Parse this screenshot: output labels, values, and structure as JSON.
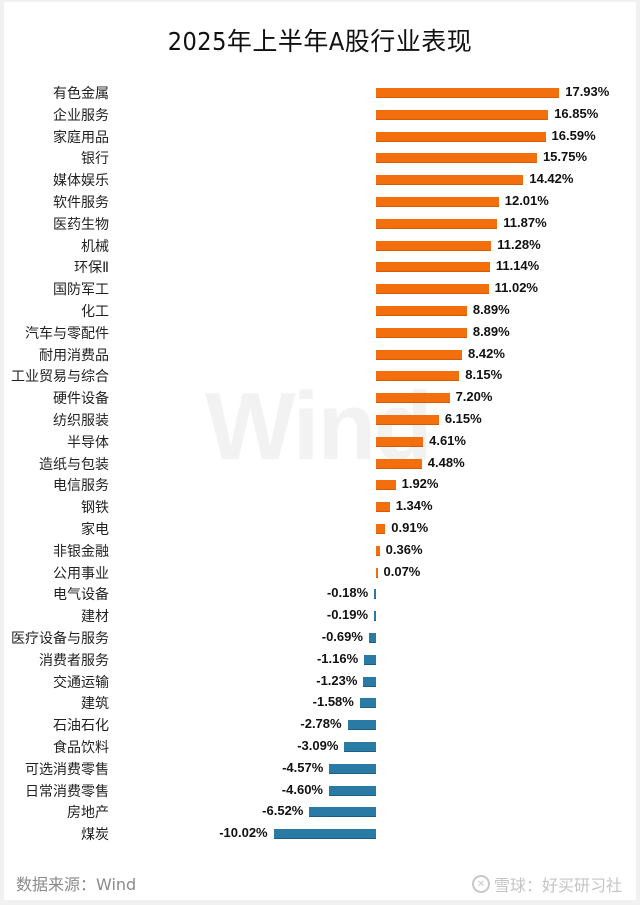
{
  "header": {
    "title": "2025年上半年A股行业表现"
  },
  "watermark": "Wind",
  "footer": {
    "source": "数据来源：Wind",
    "brand": "雪球：好买研习社",
    "brand_icon": "snowball-logo-icon"
  },
  "colors": {
    "positive": "#f36f0e",
    "negative": "#2a7aa6",
    "watermark": "#f2f2f2"
  },
  "chart_data": {
    "type": "bar",
    "orientation": "horizontal",
    "title": "2025年上半年A股行业表现",
    "xlabel": "",
    "ylabel": "",
    "value_unit": "%",
    "grid": false,
    "legend": null,
    "xlim": [
      -10.02,
      17.93
    ],
    "categories": [
      "有色金属",
      "企业服务",
      "家庭用品",
      "银行",
      "媒体娱乐",
      "软件服务",
      "医药生物",
      "机械",
      "环保Ⅱ",
      "国防军工",
      "化工",
      "汽车与零配件",
      "耐用消费品",
      "工业贸易与综合",
      "硬件设备",
      "纺织服装",
      "半导体",
      "造纸与包装",
      "电信服务",
      "钢铁",
      "家电",
      "非银金融",
      "公用事业",
      "电气设备",
      "建材",
      "医疗设备与服务",
      "消费者服务",
      "交通运输",
      "建筑",
      "石油石化",
      "食品饮料",
      "可选消费零售",
      "日常消费零售",
      "房地产",
      "煤炭"
    ],
    "values": [
      17.93,
      16.85,
      16.59,
      15.75,
      14.42,
      12.01,
      11.87,
      11.28,
      11.14,
      11.02,
      8.89,
      8.89,
      8.42,
      8.15,
      7.2,
      6.15,
      4.61,
      4.48,
      1.92,
      1.34,
      0.91,
      0.36,
      0.07,
      -0.18,
      -0.19,
      -0.69,
      -1.16,
      -1.23,
      -1.58,
      -2.78,
      -3.09,
      -4.57,
      -4.6,
      -6.52,
      -10.02
    ],
    "labels": [
      "17.93%",
      "16.85%",
      "16.59%",
      "15.75%",
      "14.42%",
      "12.01%",
      "11.87%",
      "11.28%",
      "11.14%",
      "11.02%",
      "8.89%",
      "8.89%",
      "8.42%",
      "8.15%",
      "7.20%",
      "6.15%",
      "4.61%",
      "4.48%",
      "1.92%",
      "1.34%",
      "0.91%",
      "0.36%",
      "0.07%",
      "-0.18%",
      "-0.19%",
      "-0.69%",
      "-1.16%",
      "-1.23%",
      "-1.58%",
      "-2.78%",
      "-3.09%",
      "-4.57%",
      "-4.60%",
      "-6.52%",
      "-10.02%"
    ]
  }
}
